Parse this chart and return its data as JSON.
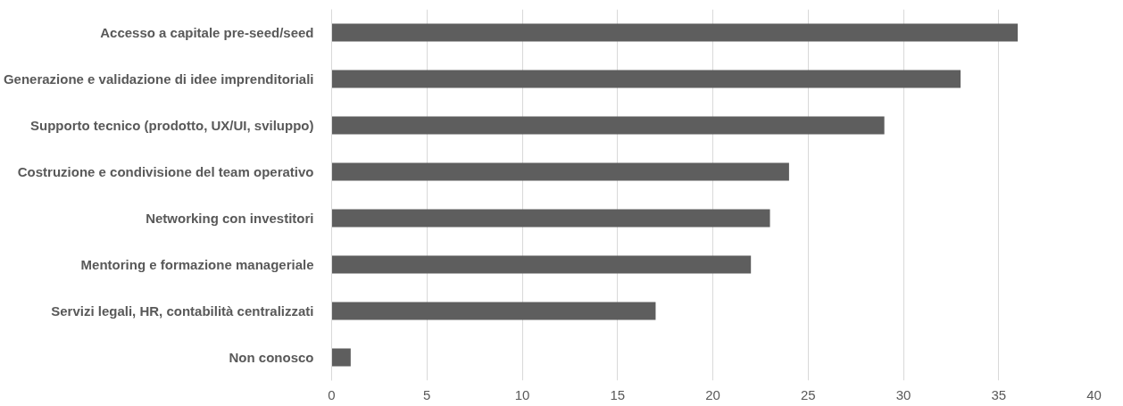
{
  "chart_data": {
    "type": "bar",
    "orientation": "horizontal",
    "categories": [
      "Accesso a capitale pre-seed/seed",
      "Generazione e validazione di idee imprenditoriali",
      "Supporto tecnico (prodotto, UX/UI, sviluppo)",
      "Costruzione e condivisione del team operativo",
      "Networking con investitori",
      "Mentoring e formazione manageriale",
      "Servizi legali, HR, contabilità centralizzati",
      "Non conosco"
    ],
    "values": [
      36,
      33,
      29,
      24,
      23,
      22,
      17,
      1
    ],
    "color": "#5e5e5e",
    "xlim": [
      0,
      40
    ],
    "xticks": [
      0,
      5,
      10,
      15,
      20,
      25,
      30,
      35,
      40
    ],
    "grid": "x"
  }
}
